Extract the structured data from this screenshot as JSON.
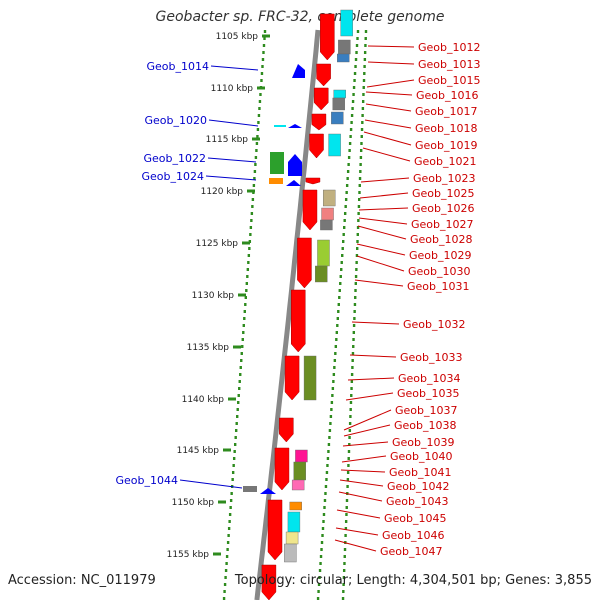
{
  "title": "Geobacter sp. FRC-32, complete genome",
  "footer": {
    "accession": "Accession: NC_011979",
    "summary": "Topology: circular; Length: 4,304,501 bp; Genes: 3,855"
  },
  "colors": {
    "backbone": "#888888",
    "ticks": "#2e8b1e",
    "right_label": "#cc0000",
    "left_label": "#0000cc",
    "gene_forward": "#ff0000",
    "gene_reverse": "#0000ff"
  },
  "scale_labels": [
    "1105 kbp",
    "1110 kbp",
    "1115 kbp",
    "1120 kbp",
    "1125 kbp",
    "1130 kbp",
    "1135 kbp",
    "1140 kbp",
    "1145 kbp",
    "1150 kbp",
    "1155 kbp"
  ],
  "right_genes": [
    "Geob_1012",
    "Geob_1013",
    "Geob_1015",
    "Geob_1016",
    "Geob_1017",
    "Geob_1018",
    "Geob_1019",
    "Geob_1021",
    "Geob_1023",
    "Geob_1025",
    "Geob_1026",
    "Geob_1027",
    "Geob_1028",
    "Geob_1029",
    "Geob_1030",
    "Geob_1031",
    "Geob_1032",
    "Geob_1033",
    "Geob_1034",
    "Geob_1035",
    "Geob_1037",
    "Geob_1038",
    "Geob_1039",
    "Geob_1040",
    "Geob_1041",
    "Geob_1042",
    "Geob_1043",
    "Geob_1045",
    "Geob_1046",
    "Geob_1047"
  ],
  "left_genes": [
    "Geob_1014",
    "Geob_1020",
    "Geob_1022",
    "Geob_1024",
    "Geob_1044"
  ]
}
